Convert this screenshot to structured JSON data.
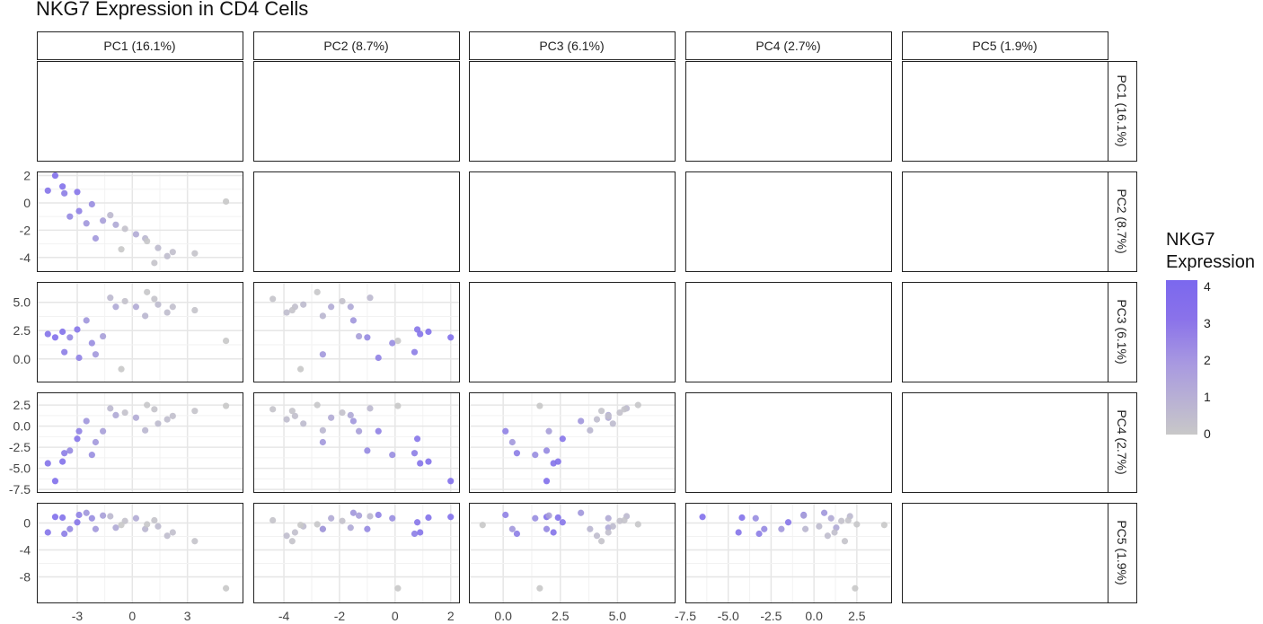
{
  "title": "NKG7 Expression in CD4 Cells",
  "chart_data": {
    "type": "scatter",
    "title": "NKG7 Expression in CD4 Cells",
    "variables": [
      "PC1 (16.1%)",
      "PC2 (8.7%)",
      "PC3 (6.1%)",
      "PC4 (2.7%)",
      "PC5 (1.9%)"
    ],
    "x_ranges": [
      [
        -5.2,
        6.0
      ],
      [
        -5.1,
        2.3
      ],
      [
        -1.5,
        7.5
      ],
      [
        -7.5,
        4.5
      ]
    ],
    "y_ranges": [
      [
        -5.0,
        2.3
      ],
      [
        -2.0,
        6.8
      ],
      [
        -7.8,
        4.0
      ],
      [
        -11.8,
        3.0
      ]
    ],
    "x_ticks": [
      {
        "values": [
          -3,
          0,
          3
        ],
        "labels": [
          "-3",
          "0",
          "3"
        ]
      },
      {
        "values": [
          -4,
          -2,
          0,
          2
        ],
        "labels": [
          "-4",
          "-2",
          "0",
          "2"
        ]
      },
      {
        "values": [
          0,
          2.5,
          5
        ],
        "labels": [
          "0.0",
          "2.5",
          "5.0"
        ]
      },
      {
        "values": [
          -7.5,
          -5,
          -2.5,
          0,
          2.5
        ],
        "labels": [
          "-7.5",
          "-5.0",
          "-2.5",
          "0.0",
          "2.5"
        ]
      }
    ],
    "y_ticks": [
      {
        "values": [
          2,
          0,
          -2,
          -4
        ],
        "labels": [
          "2",
          "0",
          "-2",
          "-4"
        ]
      },
      {
        "values": [
          5,
          2.5,
          0
        ],
        "labels": [
          "5.0",
          "2.5",
          "0.0"
        ]
      },
      {
        "values": [
          2.5,
          0,
          -2.5,
          -5,
          -7.5
        ],
        "labels": [
          "2.5",
          "0.0",
          "-2.5",
          "-5.0",
          "-7.5"
        ]
      },
      {
        "values": [
          0,
          -4,
          -8
        ],
        "labels": [
          "0",
          "-4",
          "-8"
        ]
      }
    ],
    "legend": {
      "title": [
        "NKG7",
        "Expression"
      ],
      "ticks": [
        4,
        3,
        2,
        1,
        0
      ],
      "tick_labels": [
        "4",
        "3",
        "2",
        "1",
        "0"
      ],
      "range": [
        0,
        4.2
      ],
      "low_color": "#c8c8c8",
      "high_color": "#7b68ee",
      "placement": "right"
    },
    "cells": [
      {
        "id": 1,
        "pc": [
          -3.0,
          0.8,
          2.6,
          -1.5,
          0.1
        ],
        "nkg7": 3.6
      },
      {
        "id": 2,
        "pc": [
          -4.2,
          2.0,
          1.9,
          -6.5,
          0.9
        ],
        "nkg7": 3.9
      },
      {
        "id": 3,
        "pc": [
          -4.6,
          0.9,
          2.2,
          -4.4,
          -1.4
        ],
        "nkg7": 3.7
      },
      {
        "id": 4,
        "pc": [
          -3.7,
          0.7,
          0.6,
          -3.2,
          -1.6
        ],
        "nkg7": 3.3
      },
      {
        "id": 5,
        "pc": [
          -2.9,
          -0.6,
          0.1,
          -0.6,
          1.2
        ],
        "nkg7": 3.1
      },
      {
        "id": 6,
        "pc": [
          -3.4,
          -1.0,
          1.9,
          -2.9,
          -0.9
        ],
        "nkg7": 2.8
      },
      {
        "id": 7,
        "pc": [
          -2.2,
          -0.1,
          1.4,
          -3.4,
          0.7
        ],
        "nkg7": 2.6
      },
      {
        "id": 8,
        "pc": [
          -2.5,
          -1.5,
          3.4,
          0.6,
          1.5
        ],
        "nkg7": 2.2
      },
      {
        "id": 9,
        "pc": [
          -1.6,
          -1.3,
          2.0,
          -0.6,
          1.1
        ],
        "nkg7": 1.8
      },
      {
        "id": 10,
        "pc": [
          -0.9,
          -1.6,
          4.6,
          1.3,
          -0.7
        ],
        "nkg7": 1.4
      },
      {
        "id": 11,
        "pc": [
          0.2,
          -2.3,
          4.6,
          1.0,
          0.7
        ],
        "nkg7": 1.3
      },
      {
        "id": 12,
        "pc": [
          0.7,
          -2.6,
          3.8,
          -0.5,
          -0.9
        ],
        "nkg7": 0.8
      },
      {
        "id": 13,
        "pc": [
          1.4,
          -3.3,
          4.8,
          0.3,
          -0.5
        ],
        "nkg7": 0.6
      },
      {
        "id": 14,
        "pc": [
          2.2,
          -3.6,
          4.6,
          1.2,
          -1.4
        ],
        "nkg7": 0.4
      },
      {
        "id": 15,
        "pc": [
          3.4,
          -3.7,
          4.3,
          1.8,
          -2.7
        ],
        "nkg7": 0.2
      },
      {
        "id": 16,
        "pc": [
          5.1,
          0.1,
          1.6,
          2.4,
          -9.7
        ],
        "nkg7": 0.0
      },
      {
        "id": 17,
        "pc": [
          -1.2,
          -0.9,
          5.4,
          2.1,
          1.0
        ],
        "nkg7": 0.7
      },
      {
        "id": 18,
        "pc": [
          -0.4,
          -1.9,
          5.1,
          1.6,
          0.3
        ],
        "nkg7": 0.3
      },
      {
        "id": 19,
        "pc": [
          0.8,
          -2.8,
          5.9,
          2.5,
          -0.2
        ],
        "nkg7": 0.1
      },
      {
        "id": 20,
        "pc": [
          1.9,
          -3.9,
          4.1,
          0.8,
          -1.9
        ],
        "nkg7": 0.5
      },
      {
        "id": 21,
        "pc": [
          -0.6,
          -3.4,
          -0.9,
          4.1,
          -0.3
        ],
        "nkg7": 0.0
      },
      {
        "id": 22,
        "pc": [
          -2.0,
          -2.6,
          0.4,
          -1.9,
          -0.9
        ],
        "nkg7": 2.1
      },
      {
        "id": 23,
        "pc": [
          1.2,
          -4.4,
          5.3,
          2.0,
          0.4
        ],
        "nkg7": 0.2
      },
      {
        "id": 24,
        "pc": [
          -3.8,
          1.2,
          2.4,
          -4.2,
          0.8
        ],
        "nkg7": 3.8
      }
    ]
  }
}
